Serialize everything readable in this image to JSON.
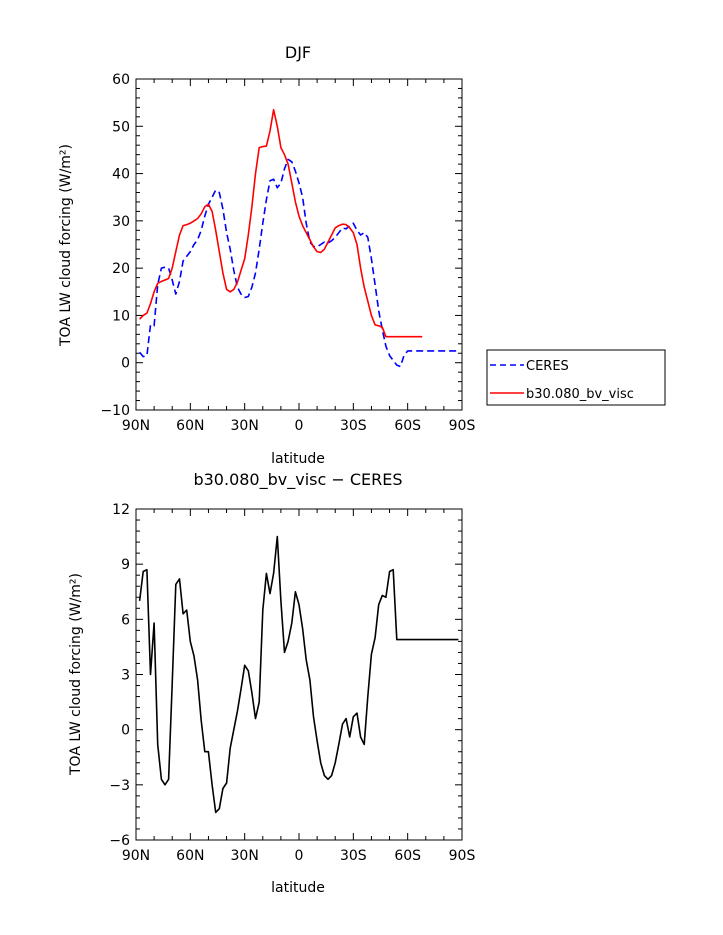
{
  "chart_data": [
    {
      "type": "line",
      "title": "DJF",
      "xlabel": "latitude",
      "ylabel": "TOA LW cloud forcing (W/m²)",
      "xlim": [
        -90,
        90
      ],
      "ylim": [
        -10,
        60
      ],
      "x_ticks": [
        -90,
        -60,
        -30,
        0,
        30,
        60,
        90
      ],
      "x_tick_labels": [
        "90N",
        "60N",
        "30N",
        "0",
        "30S",
        "60S",
        "90S"
      ],
      "y_ticks": [
        -10,
        0,
        10,
        20,
        30,
        40,
        50,
        60
      ],
      "y_tick_labels": [
        "−10",
        "0",
        "10",
        "20",
        "30",
        "40",
        "50",
        "60"
      ],
      "legend": [
        "CERES",
        "b30.080_bv_visc"
      ],
      "series": [
        {
          "name": "CERES",
          "color": "#0000ff",
          "dash": "dashed",
          "x": [
            -88,
            -86,
            -84,
            -82,
            -80,
            -78,
            -76,
            -74,
            -72,
            -70,
            -68,
            -66,
            -64,
            -62,
            -60,
            -58,
            -56,
            -54,
            -52,
            -50,
            -48,
            -46,
            -44,
            -42,
            -40,
            -38,
            -36,
            -34,
            -32,
            -30,
            -28,
            -26,
            -24,
            -22,
            -20,
            -18,
            -16,
            -14,
            -12,
            -10,
            -8,
            -6,
            -4,
            -2,
            0,
            2,
            4,
            6,
            8,
            10,
            12,
            14,
            16,
            18,
            20,
            22,
            24,
            26,
            28,
            30,
            32,
            34,
            36,
            38,
            40,
            42,
            44,
            46,
            48,
            50,
            52,
            54,
            56,
            58,
            60,
            62,
            64,
            66,
            68,
            70,
            72,
            74,
            76,
            78,
            80,
            82,
            84,
            86,
            88
          ],
          "values": [
            2.2,
            1.3,
            1.5,
            8.0,
            7.8,
            16.5,
            20.0,
            20.2,
            20.0,
            17.5,
            14.5,
            17.2,
            21.5,
            22.5,
            23.5,
            25.0,
            26.0,
            28.0,
            31.0,
            33.5,
            35.0,
            36.5,
            36.0,
            32.5,
            27.5,
            24.0,
            19.5,
            16.0,
            14.5,
            13.8,
            14.0,
            16.0,
            19.0,
            24.0,
            29.5,
            34.5,
            38.5,
            38.8,
            37.0,
            38.0,
            41.0,
            43.0,
            42.5,
            40.5,
            38.0,
            35.0,
            29.5,
            25.5,
            24.6,
            24.5,
            25.0,
            25.5,
            25.3,
            25.8,
            26.5,
            27.5,
            28.5,
            28.3,
            29.0,
            29.5,
            28.0,
            27.0,
            27.5,
            26.5,
            22.0,
            16.5,
            11.0,
            7.0,
            3.5,
            1.5,
            0.5,
            -0.5,
            -0.8,
            1.5,
            2.5,
            2.5,
            2.5,
            2.5,
            2.5,
            2.5,
            2.5,
            2.5,
            2.5,
            2.5,
            2.5,
            2.5,
            2.5,
            2.5,
            2.5
          ]
        },
        {
          "name": "b30.080_bv_visc",
          "color": "#ff0000",
          "dash": "solid",
          "x": [
            -88,
            -86,
            -84,
            -82,
            -80,
            -78,
            -76,
            -74,
            -72,
            -70,
            -68,
            -66,
            -64,
            -62,
            -60,
            -58,
            -56,
            -54,
            -52,
            -50,
            -48,
            -46,
            -44,
            -42,
            -40,
            -38,
            -36,
            -34,
            -32,
            -30,
            -28,
            -26,
            -24,
            -22,
            -20,
            -18,
            -16,
            -14,
            -12,
            -10,
            -8,
            -6,
            -4,
            -2,
            0,
            2,
            4,
            6,
            8,
            10,
            12,
            14,
            16,
            18,
            20,
            22,
            24,
            26,
            28,
            30,
            32,
            34,
            36,
            38,
            40,
            42,
            44,
            46,
            48,
            50,
            52,
            54,
            56,
            58,
            60,
            62,
            64,
            66,
            68
          ],
          "values": [
            9.2,
            10.0,
            10.5,
            12.5,
            15.0,
            16.8,
            17.2,
            17.5,
            17.8,
            20.0,
            23.5,
            27.0,
            29.0,
            29.2,
            29.5,
            30.0,
            30.5,
            31.5,
            33.0,
            33.5,
            32.0,
            28.0,
            23.5,
            19.0,
            15.5,
            15.0,
            15.5,
            17.0,
            19.5,
            22.0,
            27.0,
            33.0,
            40.0,
            45.5,
            45.7,
            45.8,
            49.0,
            53.5,
            50.0,
            45.5,
            44.0,
            42.0,
            38.0,
            34.0,
            31.0,
            29.0,
            27.5,
            26.0,
            24.5,
            23.5,
            23.3,
            24.0,
            25.5,
            27.0,
            28.5,
            29.0,
            29.3,
            29.2,
            28.5,
            27.5,
            25.0,
            20.0,
            16.0,
            13.0,
            10.0,
            8.0,
            7.8,
            7.5,
            5.5,
            5.5,
            5.5,
            5.5,
            5.5,
            5.5,
            5.5,
            5.5,
            5.5,
            5.5,
            5.5
          ]
        }
      ]
    },
    {
      "type": "line",
      "title": "b30.080_bv_visc − CERES",
      "xlabel": "latitude",
      "ylabel": "TOA LW cloud forcing (W/m²)",
      "xlim": [
        -90,
        90
      ],
      "ylim": [
        -6,
        12
      ],
      "x_ticks": [
        -90,
        -60,
        -30,
        0,
        30,
        60,
        90
      ],
      "x_tick_labels": [
        "90N",
        "60N",
        "30N",
        "0",
        "30S",
        "60S",
        "90S"
      ],
      "y_ticks": [
        -6,
        -3,
        0,
        3,
        6,
        9,
        12
      ],
      "y_tick_labels": [
        "−6",
        "−3",
        "0",
        "3",
        "6",
        "9",
        "12"
      ],
      "series": [
        {
          "name": "b30.080_bv_visc − CERES",
          "color": "#000000",
          "dash": "solid",
          "x": [
            -88,
            -86,
            -84,
            -82,
            -80,
            -78,
            -76,
            -74,
            -72,
            -70,
            -68,
            -66,
            -64,
            -62,
            -60,
            -58,
            -56,
            -54,
            -52,
            -50,
            -48,
            -46,
            -44,
            -42,
            -40,
            -38,
            -36,
            -34,
            -32,
            -30,
            -28,
            -26,
            -24,
            -22,
            -20,
            -18,
            -16,
            -14,
            -12,
            -10,
            -8,
            -6,
            -4,
            -2,
            0,
            2,
            4,
            6,
            8,
            10,
            12,
            14,
            16,
            18,
            20,
            22,
            24,
            26,
            28,
            30,
            32,
            34,
            36,
            38,
            40,
            42,
            44,
            46,
            48,
            50,
            52,
            54,
            56,
            58,
            60,
            62,
            64,
            66,
            68,
            70,
            72,
            74,
            76,
            78,
            80,
            82,
            84,
            86,
            88
          ],
          "values": [
            7.0,
            8.6,
            8.7,
            3.0,
            5.8,
            -0.8,
            -2.7,
            -3.0,
            -2.7,
            2.5,
            7.9,
            8.2,
            6.3,
            6.5,
            4.8,
            4.0,
            2.7,
            0.5,
            -1.2,
            -1.2,
            -3.0,
            -4.5,
            -4.3,
            -3.2,
            -2.9,
            -1.0,
            0.0,
            1.0,
            2.2,
            3.5,
            3.2,
            2.0,
            0.6,
            1.5,
            6.5,
            8.5,
            7.4,
            8.5,
            10.5,
            7.0,
            4.2,
            4.8,
            5.8,
            7.5,
            6.8,
            5.5,
            3.8,
            2.7,
            0.7,
            -0.6,
            -1.8,
            -2.5,
            -2.7,
            -2.5,
            -1.8,
            -0.8,
            0.3,
            0.6,
            -0.4,
            0.7,
            0.9,
            -0.4,
            -0.8,
            1.8,
            4.1,
            5.0,
            6.8,
            7.3,
            7.2,
            8.6,
            8.7,
            4.9,
            4.9,
            4.9,
            4.9,
            4.9,
            4.9,
            4.9,
            4.9,
            4.9,
            4.9,
            4.9,
            4.9,
            4.9,
            4.9,
            4.9,
            4.9,
            4.9,
            4.9
          ]
        }
      ]
    }
  ]
}
